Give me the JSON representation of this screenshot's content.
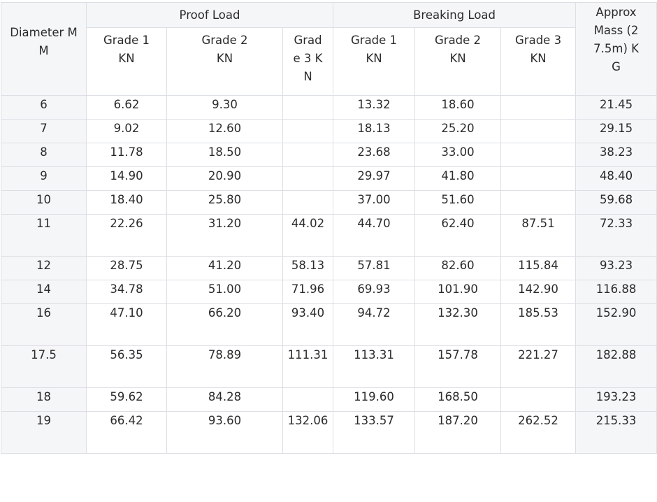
{
  "table": {
    "header": {
      "diameter": "Diameter MM",
      "proof_load": "Proof Load",
      "breaking_load": "Breaking Load",
      "mass": "Approx Mass (27.5m) KG",
      "grades": [
        "Grade 1 KN",
        "Grade 2 KN",
        "Grade 3 KN",
        "Grade 1 KN",
        "Grade 2 KN",
        "Grade 3 KN"
      ]
    },
    "rows": [
      [
        "6",
        "6.62",
        "9.30",
        "",
        "13.32",
        "18.60",
        "",
        "21.45"
      ],
      [
        "7",
        "9.02",
        "12.60",
        "",
        "18.13",
        "25.20",
        "",
        "29.15"
      ],
      [
        "8",
        "11.78",
        "18.50",
        "",
        "23.68",
        "33.00",
        "",
        "38.23"
      ],
      [
        "9",
        "14.90",
        "20.90",
        "",
        "29.97",
        "41.80",
        "",
        "48.40"
      ],
      [
        "10",
        "18.40",
        "25.80",
        "",
        "37.00",
        "51.60",
        "",
        "59.68"
      ],
      [
        "11",
        "22.26",
        "31.20",
        "44.02",
        "44.70",
        "62.40",
        "87.51",
        "72.33"
      ],
      [
        "12",
        "28.75",
        "41.20",
        "58.13",
        "57.81",
        "82.60",
        "115.84",
        "93.23"
      ],
      [
        "14",
        "34.78",
        "51.00",
        "71.96",
        "69.93",
        "101.90",
        "142.90",
        "116.88"
      ],
      [
        "16",
        "47.10",
        "66.20",
        "93.40",
        "94.72",
        "132.30",
        "185.53",
        "152.90"
      ],
      [
        "17.5",
        "56.35",
        "78.89",
        "111.31",
        "113.31",
        "157.78",
        "221.27",
        "182.88"
      ],
      [
        "18",
        "59.62",
        "84.28",
        "",
        "119.60",
        "168.50",
        "",
        "193.23"
      ],
      [
        "19",
        "66.42",
        "93.60",
        "132.06",
        "133.57",
        "187.20",
        "262.52",
        "215.33"
      ]
    ]
  }
}
